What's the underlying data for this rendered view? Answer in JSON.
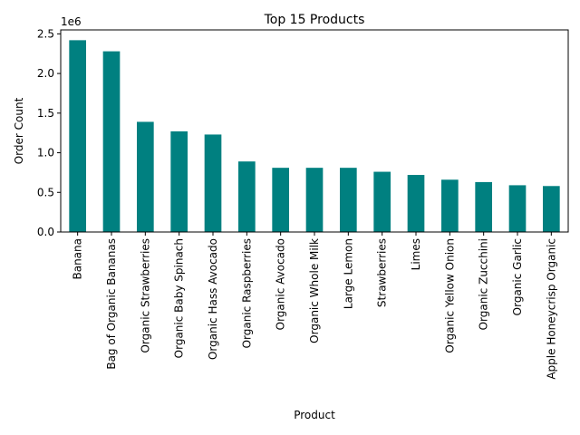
{
  "chart_data": {
    "type": "bar",
    "title": "Top 15 Products",
    "xlabel": "Product",
    "ylabel": "Order Count",
    "y_offset_label": "1e6",
    "ylim": [
      0,
      2.55
    ],
    "yticks": [
      0.0,
      0.5,
      1.0,
      1.5,
      2.0,
      2.5
    ],
    "ytick_labels": [
      "0.0",
      "0.5",
      "1.0",
      "1.5",
      "2.0",
      "2.5"
    ],
    "grid": false,
    "bar_color": "#008080",
    "categories": [
      "Banana",
      "Bag of Organic Bananas",
      "Organic Strawberries",
      "Organic Baby Spinach",
      "Organic Hass Avocado",
      "Organic Raspberries",
      "Organic Avocado",
      "Organic Whole Milk",
      "Large Lemon",
      "Strawberries",
      "Limes",
      "Organic Yellow Onion",
      "Organic Zucchini",
      "Organic Garlic",
      "Apple Honeycrisp Organic"
    ],
    "values": [
      2.42,
      2.28,
      1.39,
      1.27,
      1.23,
      0.89,
      0.81,
      0.81,
      0.81,
      0.76,
      0.72,
      0.66,
      0.63,
      0.59,
      0.58
    ]
  }
}
